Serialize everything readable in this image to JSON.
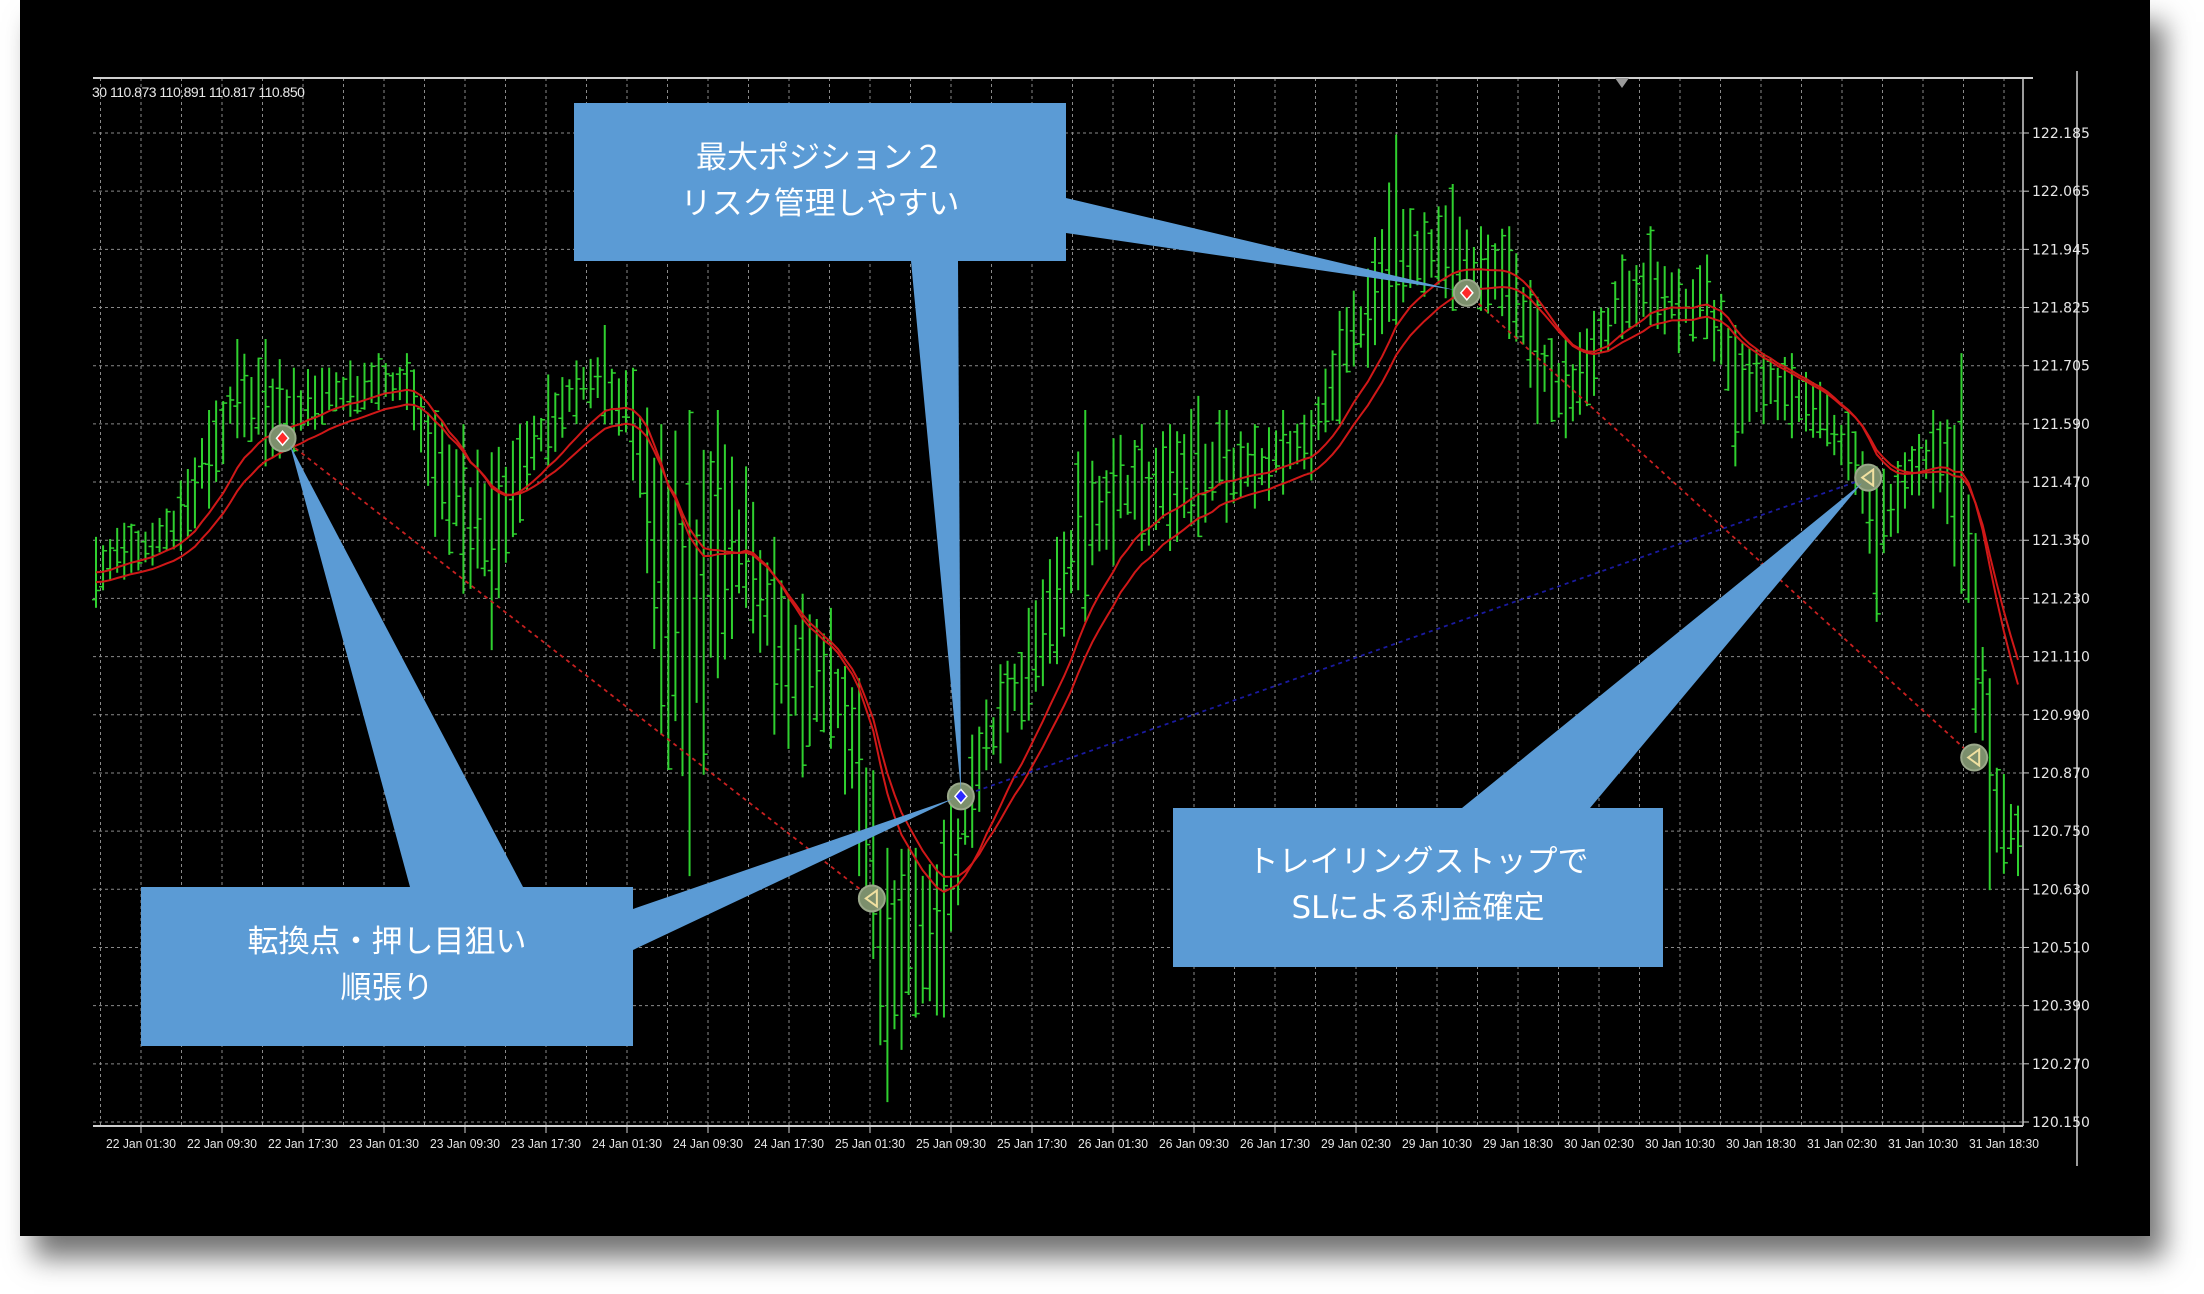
{
  "header_text": "30 110.873 110.891 110.817 110.850",
  "colors": {
    "background": "#000000",
    "grid": "#8a8a8a",
    "bars": "#2fd02f",
    "ma": "#d01818",
    "callout": "#5b9bd5",
    "callout_text": "#ffffff",
    "stop_line": "#c82020",
    "profit_line": "#1a1aa0"
  },
  "callouts": [
    {
      "id": "max-position",
      "lines": [
        "最大ポジション２",
        "リスク管理しやすい"
      ]
    },
    {
      "id": "turning-point",
      "lines": [
        "転換点・押し目狙い",
        "順張り"
      ]
    },
    {
      "id": "trailing-stop",
      "lines": [
        "トレイリングストップで",
        "SLによる利益確定"
      ]
    }
  ],
  "chart_data": {
    "type": "bar",
    "subtype": "ohlc-price-chart",
    "ylim": [
      120.15,
      122.185
    ],
    "y_ticks": [
      "122.185",
      "122.065",
      "121.945",
      "121.825",
      "121.705",
      "121.590",
      "121.470",
      "121.350",
      "121.230",
      "121.110",
      "120.990",
      "120.870",
      "120.750",
      "120.630",
      "120.510",
      "120.390",
      "120.270",
      "120.150"
    ],
    "x_ticks": [
      "22 Jan 01:30",
      "22 Jan 09:30",
      "22 Jan 17:30",
      "23 Jan 01:30",
      "23 Jan 09:30",
      "23 Jan 17:30",
      "24 Jan 01:30",
      "24 Jan 09:30",
      "24 Jan 17:30",
      "25 Jan 01:30",
      "25 Jan 09:30",
      "25 Jan 17:30",
      "26 Jan 01:30",
      "26 Jan 09:30",
      "26 Jan 17:30",
      "29 Jan 02:30",
      "29 Jan 10:30",
      "29 Jan 18:30",
      "30 Jan 02:30",
      "30 Jan 10:30",
      "30 Jan 18:30",
      "31 Jan 02:30",
      "31 Jan 10:30",
      "31 Jan 18:30"
    ],
    "grid": true,
    "bars_high_low": [
      [
        121.354,
        121.208
      ],
      [
        121.383,
        121.266
      ],
      [
        121.383,
        121.295
      ],
      [
        121.47,
        121.325
      ],
      [
        121.615,
        121.412
      ],
      [
        121.761,
        121.557
      ],
      [
        121.761,
        121.499
      ],
      [
        121.702,
        121.528
      ],
      [
        121.702,
        121.586
      ],
      [
        121.717,
        121.601
      ],
      [
        121.732,
        121.615
      ],
      [
        121.732,
        121.615
      ],
      [
        121.615,
        121.354
      ],
      [
        121.586,
        121.237
      ],
      [
        121.528,
        121.121
      ],
      [
        121.586,
        121.383
      ],
      [
        121.688,
        121.499
      ],
      [
        121.717,
        121.586
      ],
      [
        121.79,
        121.586
      ],
      [
        121.702,
        121.47
      ],
      [
        121.586,
        120.947
      ],
      [
        121.615,
        120.656
      ],
      [
        121.615,
        121.063
      ],
      [
        121.499,
        121.208
      ],
      [
        121.354,
        120.947
      ],
      [
        121.237,
        120.859
      ],
      [
        121.208,
        120.918
      ],
      [
        121.063,
        120.656
      ],
      [
        120.714,
        120.191
      ],
      [
        120.714,
        120.365
      ],
      [
        120.772,
        120.365
      ],
      [
        120.947,
        120.714
      ],
      [
        121.092,
        120.888
      ],
      [
        121.208,
        120.976
      ],
      [
        121.354,
        121.092
      ],
      [
        121.615,
        121.179
      ],
      [
        121.557,
        121.295
      ],
      [
        121.586,
        121.325
      ],
      [
        121.586,
        121.325
      ],
      [
        121.644,
        121.354
      ],
      [
        121.615,
        121.383
      ],
      [
        121.586,
        121.412
      ],
      [
        121.615,
        121.441
      ],
      [
        121.615,
        121.47
      ],
      [
        121.819,
        121.586
      ],
      [
        121.906,
        121.702
      ],
      [
        122.182,
        121.79
      ],
      [
        122.022,
        121.848
      ],
      [
        122.08,
        121.819
      ],
      [
        121.993,
        121.819
      ],
      [
        121.993,
        121.761
      ],
      [
        121.848,
        121.586
      ],
      [
        121.761,
        121.557
      ],
      [
        121.819,
        121.644
      ],
      [
        121.935,
        121.761
      ],
      [
        121.993,
        121.79
      ],
      [
        121.906,
        121.732
      ],
      [
        121.935,
        121.761
      ],
      [
        121.79,
        121.499
      ],
      [
        121.732,
        121.586
      ],
      [
        121.732,
        121.557
      ],
      [
        121.673,
        121.557
      ],
      [
        121.615,
        121.47
      ],
      [
        121.499,
        121.179
      ],
      [
        121.528,
        121.412
      ],
      [
        121.615,
        121.412
      ],
      [
        121.732,
        121.237
      ],
      [
        121.063,
        120.627
      ],
      [
        120.801,
        120.656
      ]
    ],
    "trade_markers": [
      {
        "bar": 6.6,
        "price": 121.557,
        "kind": "entry-sell",
        "icon": "diamond-red"
      },
      {
        "bar": 27.45,
        "price": 120.61,
        "kind": "exit",
        "icon": "triangle-left-yellow"
      },
      {
        "bar": 30.6,
        "price": 120.82,
        "kind": "entry-buy",
        "icon": "diamond-blue"
      },
      {
        "bar": 48.5,
        "price": 121.856,
        "kind": "entry-sell",
        "icon": "diamond-red"
      },
      {
        "bar": 62.7,
        "price": 121.476,
        "kind": "exit",
        "icon": "triangle-left-yellow"
      },
      {
        "bar": 66.45,
        "price": 120.9,
        "kind": "exit",
        "icon": "triangle-left-yellow"
      }
    ],
    "trade_lines": [
      {
        "from": 0,
        "to": 1,
        "color": "stop_line"
      },
      {
        "from": 2,
        "to": 4,
        "color": "profit_line"
      },
      {
        "from": 3,
        "to": 5,
        "color": "stop_line"
      }
    ]
  }
}
